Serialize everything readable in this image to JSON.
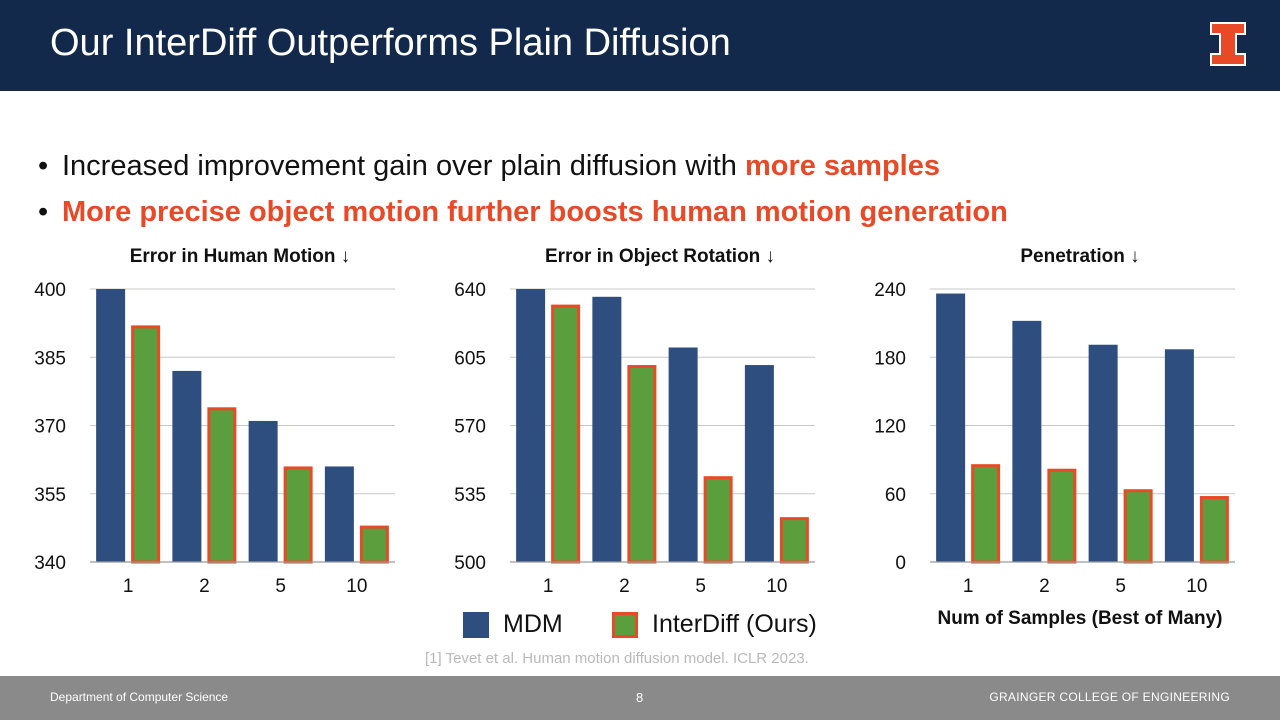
{
  "slide": {
    "title": "Our InterDiff Outperforms Plain Diffusion",
    "logo_icon": "illinois-block-i-icon",
    "bullets": [
      {
        "text": "Increased improvement gain over plain diffusion with ",
        "highlight": "more samples"
      },
      {
        "text": "",
        "highlight": "More precise object motion further boosts human motion generation"
      }
    ],
    "legend": {
      "mdm": "MDM",
      "interdiff": "InterDiff (Ours)"
    },
    "xlabel": "Num of Samples (Best of Many)",
    "citation": "[1] Tevet et al. Human motion diffusion model. ICLR 2023.",
    "footer": {
      "left": "Department of Computer Science",
      "page": "8",
      "right": "GRAINGER COLLEGE OF ENGINEERING"
    },
    "colors": {
      "header": "#13294b",
      "accent": "#e84a27",
      "mdm": "#2e4e80",
      "interdiff": "#5a9e3e",
      "footer": "#8a8a8a"
    }
  },
  "chart_data": [
    {
      "type": "bar",
      "title": "Error in Human Motion ↓",
      "categories": [
        "1",
        "2",
        "5",
        "10"
      ],
      "series": [
        {
          "name": "MDM",
          "values": [
            400,
            382,
            371,
            361
          ]
        },
        {
          "name": "InterDiff (Ours)",
          "values": [
            392,
            374,
            361,
            348
          ]
        }
      ],
      "ylim": [
        340,
        400
      ],
      "yticks": [
        340,
        355,
        370,
        385,
        400
      ],
      "grid": true
    },
    {
      "type": "bar",
      "title": "Error in Object Rotation ↓",
      "categories": [
        "1",
        "2",
        "5",
        "10"
      ],
      "series": [
        {
          "name": "MDM",
          "values": [
            640,
            636,
            610,
            601
          ]
        },
        {
          "name": "InterDiff (Ours)",
          "values": [
            632,
            601,
            544,
            523
          ]
        }
      ],
      "ylim": [
        500,
        640
      ],
      "yticks": [
        500,
        535,
        570,
        605,
        640
      ],
      "grid": true
    },
    {
      "type": "bar",
      "title": "Penetration ↓",
      "categories": [
        "1",
        "2",
        "5",
        "10"
      ],
      "series": [
        {
          "name": "MDM",
          "values": [
            236,
            212,
            191,
            187
          ]
        },
        {
          "name": "InterDiff (Ours)",
          "values": [
            86,
            82,
            64,
            58
          ]
        }
      ],
      "ylim": [
        0,
        240
      ],
      "yticks": [
        0,
        60,
        120,
        180,
        240
      ],
      "grid": true
    }
  ]
}
